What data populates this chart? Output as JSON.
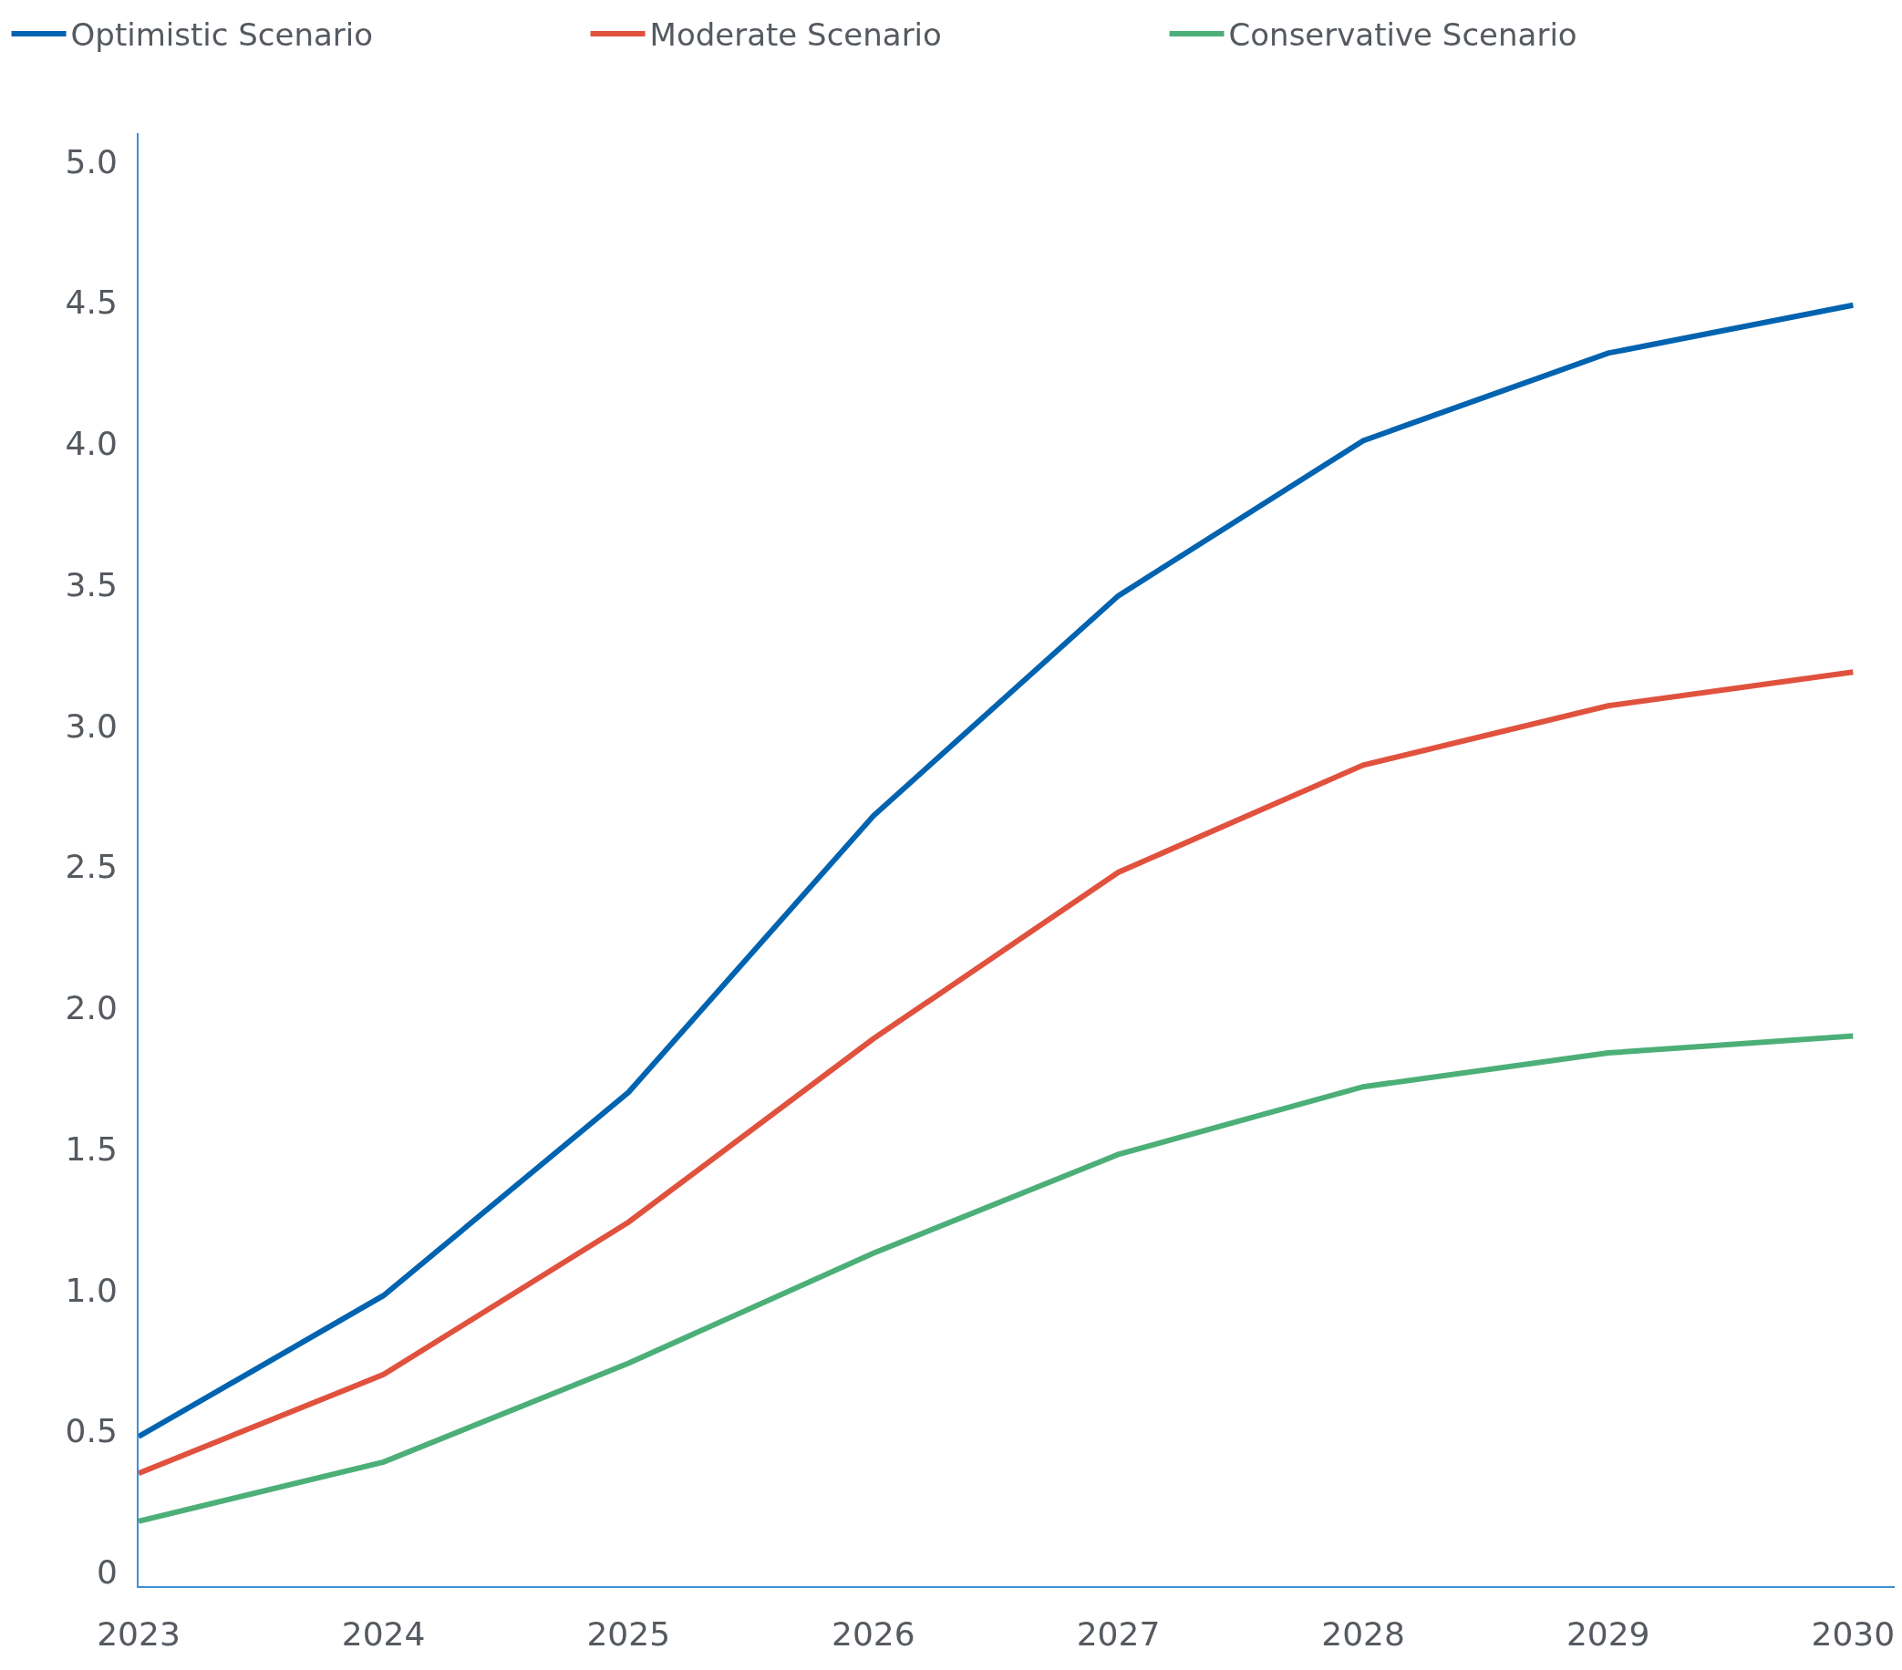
{
  "chart_data": {
    "type": "line",
    "x": [
      2023,
      2024,
      2025,
      2026,
      2027,
      2028,
      2029,
      2030
    ],
    "series": [
      {
        "name": "Optimistic Scenario",
        "color": "#0063b0",
        "values": [
          0.48,
          0.98,
          1.7,
          2.68,
          3.46,
          4.01,
          4.32,
          4.49
        ]
      },
      {
        "name": "Moderate Scenario",
        "color": "#e0523e",
        "values": [
          0.35,
          0.7,
          1.24,
          1.89,
          2.48,
          2.86,
          3.07,
          3.19
        ]
      },
      {
        "name": "Conservative Scenario",
        "color": "#4caf78",
        "values": [
          0.18,
          0.39,
          0.74,
          1.13,
          1.48,
          1.72,
          1.84,
          1.9
        ]
      }
    ],
    "xlim": [
      2023,
      2030.17
    ],
    "xticks": [
      2023,
      2024,
      2025,
      2026,
      2027,
      2028,
      2029,
      2030
    ],
    "ylim": [
      -0.05,
      5.1
    ],
    "yticks": [
      {
        "value": 0,
        "label": "0"
      },
      {
        "value": 0.5,
        "label": "0.5"
      },
      {
        "value": 1,
        "label": "1.0"
      },
      {
        "value": 1.5,
        "label": "1.5"
      },
      {
        "value": 2,
        "label": "2.0"
      },
      {
        "value": 2.5,
        "label": "2.5"
      },
      {
        "value": 3,
        "label": "3.0"
      },
      {
        "value": 3.5,
        "label": "3.5"
      },
      {
        "value": 4,
        "label": "4.0"
      },
      {
        "value": 4.5,
        "label": "4.5"
      },
      {
        "value": 5,
        "label": "5.0"
      }
    ],
    "grid": false,
    "legend": "top left",
    "marker": "none",
    "line_style": "solid"
  }
}
